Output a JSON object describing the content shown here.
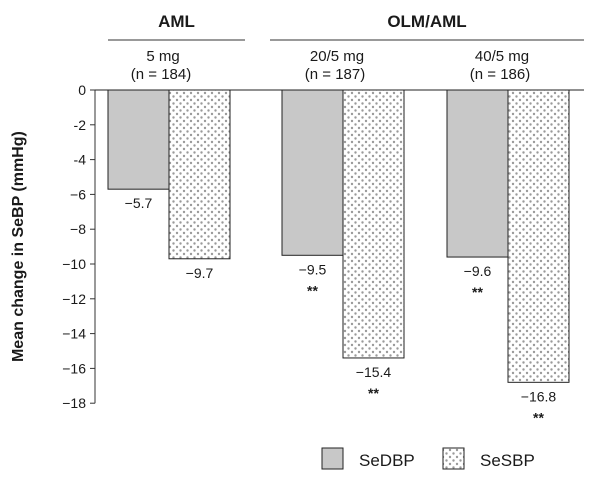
{
  "chart_data": {
    "type": "bar",
    "ylabel": "Mean change in SeBP (mmHg)",
    "ylim": [
      -18,
      0
    ],
    "yticks": [
      0,
      -2,
      -4,
      -6,
      -8,
      -10,
      -12,
      -14,
      -16,
      -18
    ],
    "ytick_labels": [
      "0",
      "-2",
      "-4",
      "−6",
      "−8",
      "−10",
      "−12",
      "−14",
      "−16",
      "−18"
    ],
    "groups": [
      {
        "label": "AML",
        "categories": [
          0
        ]
      },
      {
        "label": "OLM/AML",
        "categories": [
          1,
          2
        ]
      }
    ],
    "categories": [
      {
        "dose": "5 mg",
        "n": "(n = 184)"
      },
      {
        "dose": "20/5 mg",
        "n": "(n = 187)"
      },
      {
        "dose": "40/5 mg",
        "n": "(n = 186)"
      }
    ],
    "series": [
      {
        "name": "SeDBP",
        "color": "#c8c8c8",
        "values": [
          -5.7,
          -9.5,
          -9.6
        ],
        "labels": [
          "−5.7",
          "−9.5",
          "−9.6"
        ],
        "significance": [
          "",
          "**",
          "**"
        ]
      },
      {
        "name": "SeSBP",
        "color": "#d0d0d0",
        "pattern": "dotted",
        "values": [
          -9.7,
          -15.4,
          -16.8
        ],
        "labels": [
          "−9.7",
          "−15.4",
          "−16.8"
        ],
        "significance": [
          "",
          "**",
          "**"
        ]
      }
    ],
    "legend_position": "bottom-right",
    "grid": false
  }
}
